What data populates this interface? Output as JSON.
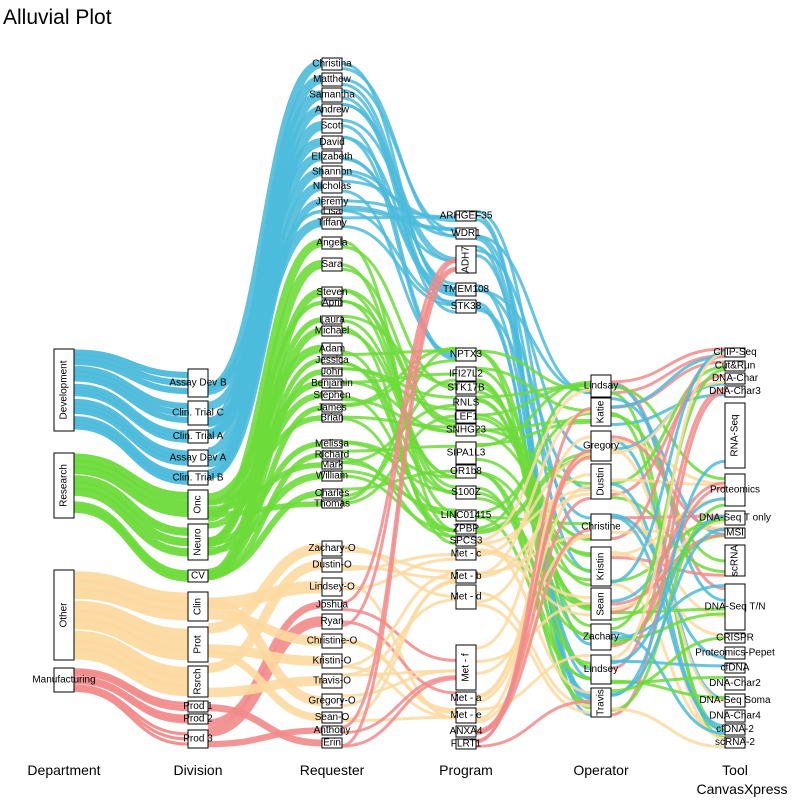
{
  "chart_data": {
    "type": "alluvial",
    "title": "Alluvial Plot",
    "credit": "CanvasXpress",
    "axes": [
      "Department",
      "Division",
      "Requester",
      "Program",
      "Operator",
      "Tool"
    ],
    "colors": {
      "Development": "#4CBBDB",
      "Research": "#6DDB3B",
      "Other": "#FDD9A0",
      "Manufacturing": "#F28A8A"
    },
    "stages": [
      [
        "Development",
        "Research",
        "Other",
        "Manufacturing"
      ],
      [
        "Assay Dev B",
        "Clin. Trial C",
        "Clin. Trial A",
        "Assay Dev A",
        "Clin. Trial B",
        "Onc",
        "Neuro",
        "CV",
        "Clin",
        "Prot",
        "Rsrch",
        "Prod 1",
        "Prod 2",
        "Prod 3"
      ],
      [
        "Christina",
        "Matthew",
        "Samantha",
        "Andrew",
        "Scott",
        "David",
        "Elizabeth",
        "Shannon",
        "Nicholas",
        "Jeremy",
        "Lisa",
        "Tiffany",
        "Angela",
        "Sara",
        "Steven",
        "April",
        "Laura",
        "Michael",
        "Adam",
        "Jessica",
        "John",
        "Benjamin",
        "Stephen",
        "James",
        "Brian",
        "Melissa",
        "Richard",
        "Mark",
        "William",
        "Charles",
        "Thomas",
        "Zachary-O",
        "Dustin-O",
        "Lindsey-O",
        "Joshua",
        "Ryan",
        "Christine-O",
        "Kristin-O",
        "Travis-O",
        "Gregory-O",
        "Sean-O",
        "Anthony",
        "Erin"
      ],
      [
        "ARHGEF35",
        "WDR1",
        "ADH7",
        "TMEM108",
        "STK38",
        "NPTX3",
        "IFI27L2",
        "STK17B",
        "RNLS",
        "LEF1",
        "SNHG23",
        "SIPA1L3",
        "OR1b8",
        "S100Z",
        "LINC01415",
        "ZPBP",
        "SPCS3",
        "Met - c",
        "Met - b",
        "Met - d",
        "Met - f",
        "Met - a",
        "Met - e",
        "ANXA4",
        "FLRT1"
      ],
      [
        "Lindsay",
        "Katie",
        "Gregory",
        "Dustin",
        "Christine",
        "Kristin",
        "Sean",
        "Zachary",
        "Lindsey",
        "Travis"
      ],
      [
        "ChIP-Seq",
        "Cut&Run",
        "DNA-Char",
        "DNA-Char3",
        "RNA-Seq",
        "Proteomics",
        "DNA-Seq T only",
        "MSI",
        "scRNA",
        "DNA-Seq T/N",
        "CRISPR",
        "Proteomics-Pepet",
        "cfDNA",
        "DNA-Char2",
        "DNA-Seq Soma",
        "DNA-Char4",
        "cfDNA-2",
        "scRNA-2"
      ]
    ]
  }
}
